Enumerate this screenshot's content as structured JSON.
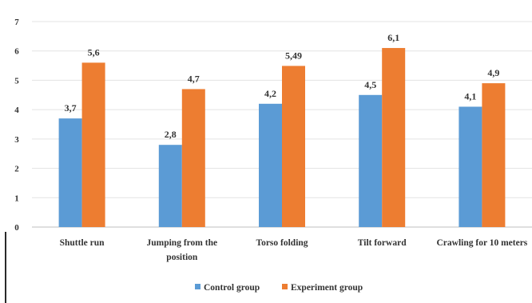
{
  "chart_data": {
    "type": "bar",
    "categories": [
      "Shuttle run",
      "Jumping from the position",
      "Torso folding",
      "Tilt forward",
      "Crawling for 10 meters"
    ],
    "series": [
      {
        "name": "Control group",
        "values": [
          3.7,
          2.8,
          4.2,
          4.5,
          4.1
        ],
        "labels": [
          "3,7",
          "2,8",
          "4,2",
          "4,5",
          "4,1"
        ],
        "color": "#5b9bd5"
      },
      {
        "name": "Experiment group",
        "values": [
          5.6,
          4.7,
          5.49,
          6.1,
          4.9
        ],
        "labels": [
          "5,6",
          "4,7",
          "5,49",
          "6,1",
          "4,9"
        ],
        "color": "#ed7d31"
      }
    ],
    "yticks": [
      0,
      1,
      2,
      3,
      4,
      5,
      6,
      7
    ],
    "ylim": [
      0,
      7
    ],
    "grid": true,
    "legend": "bottom-center"
  }
}
